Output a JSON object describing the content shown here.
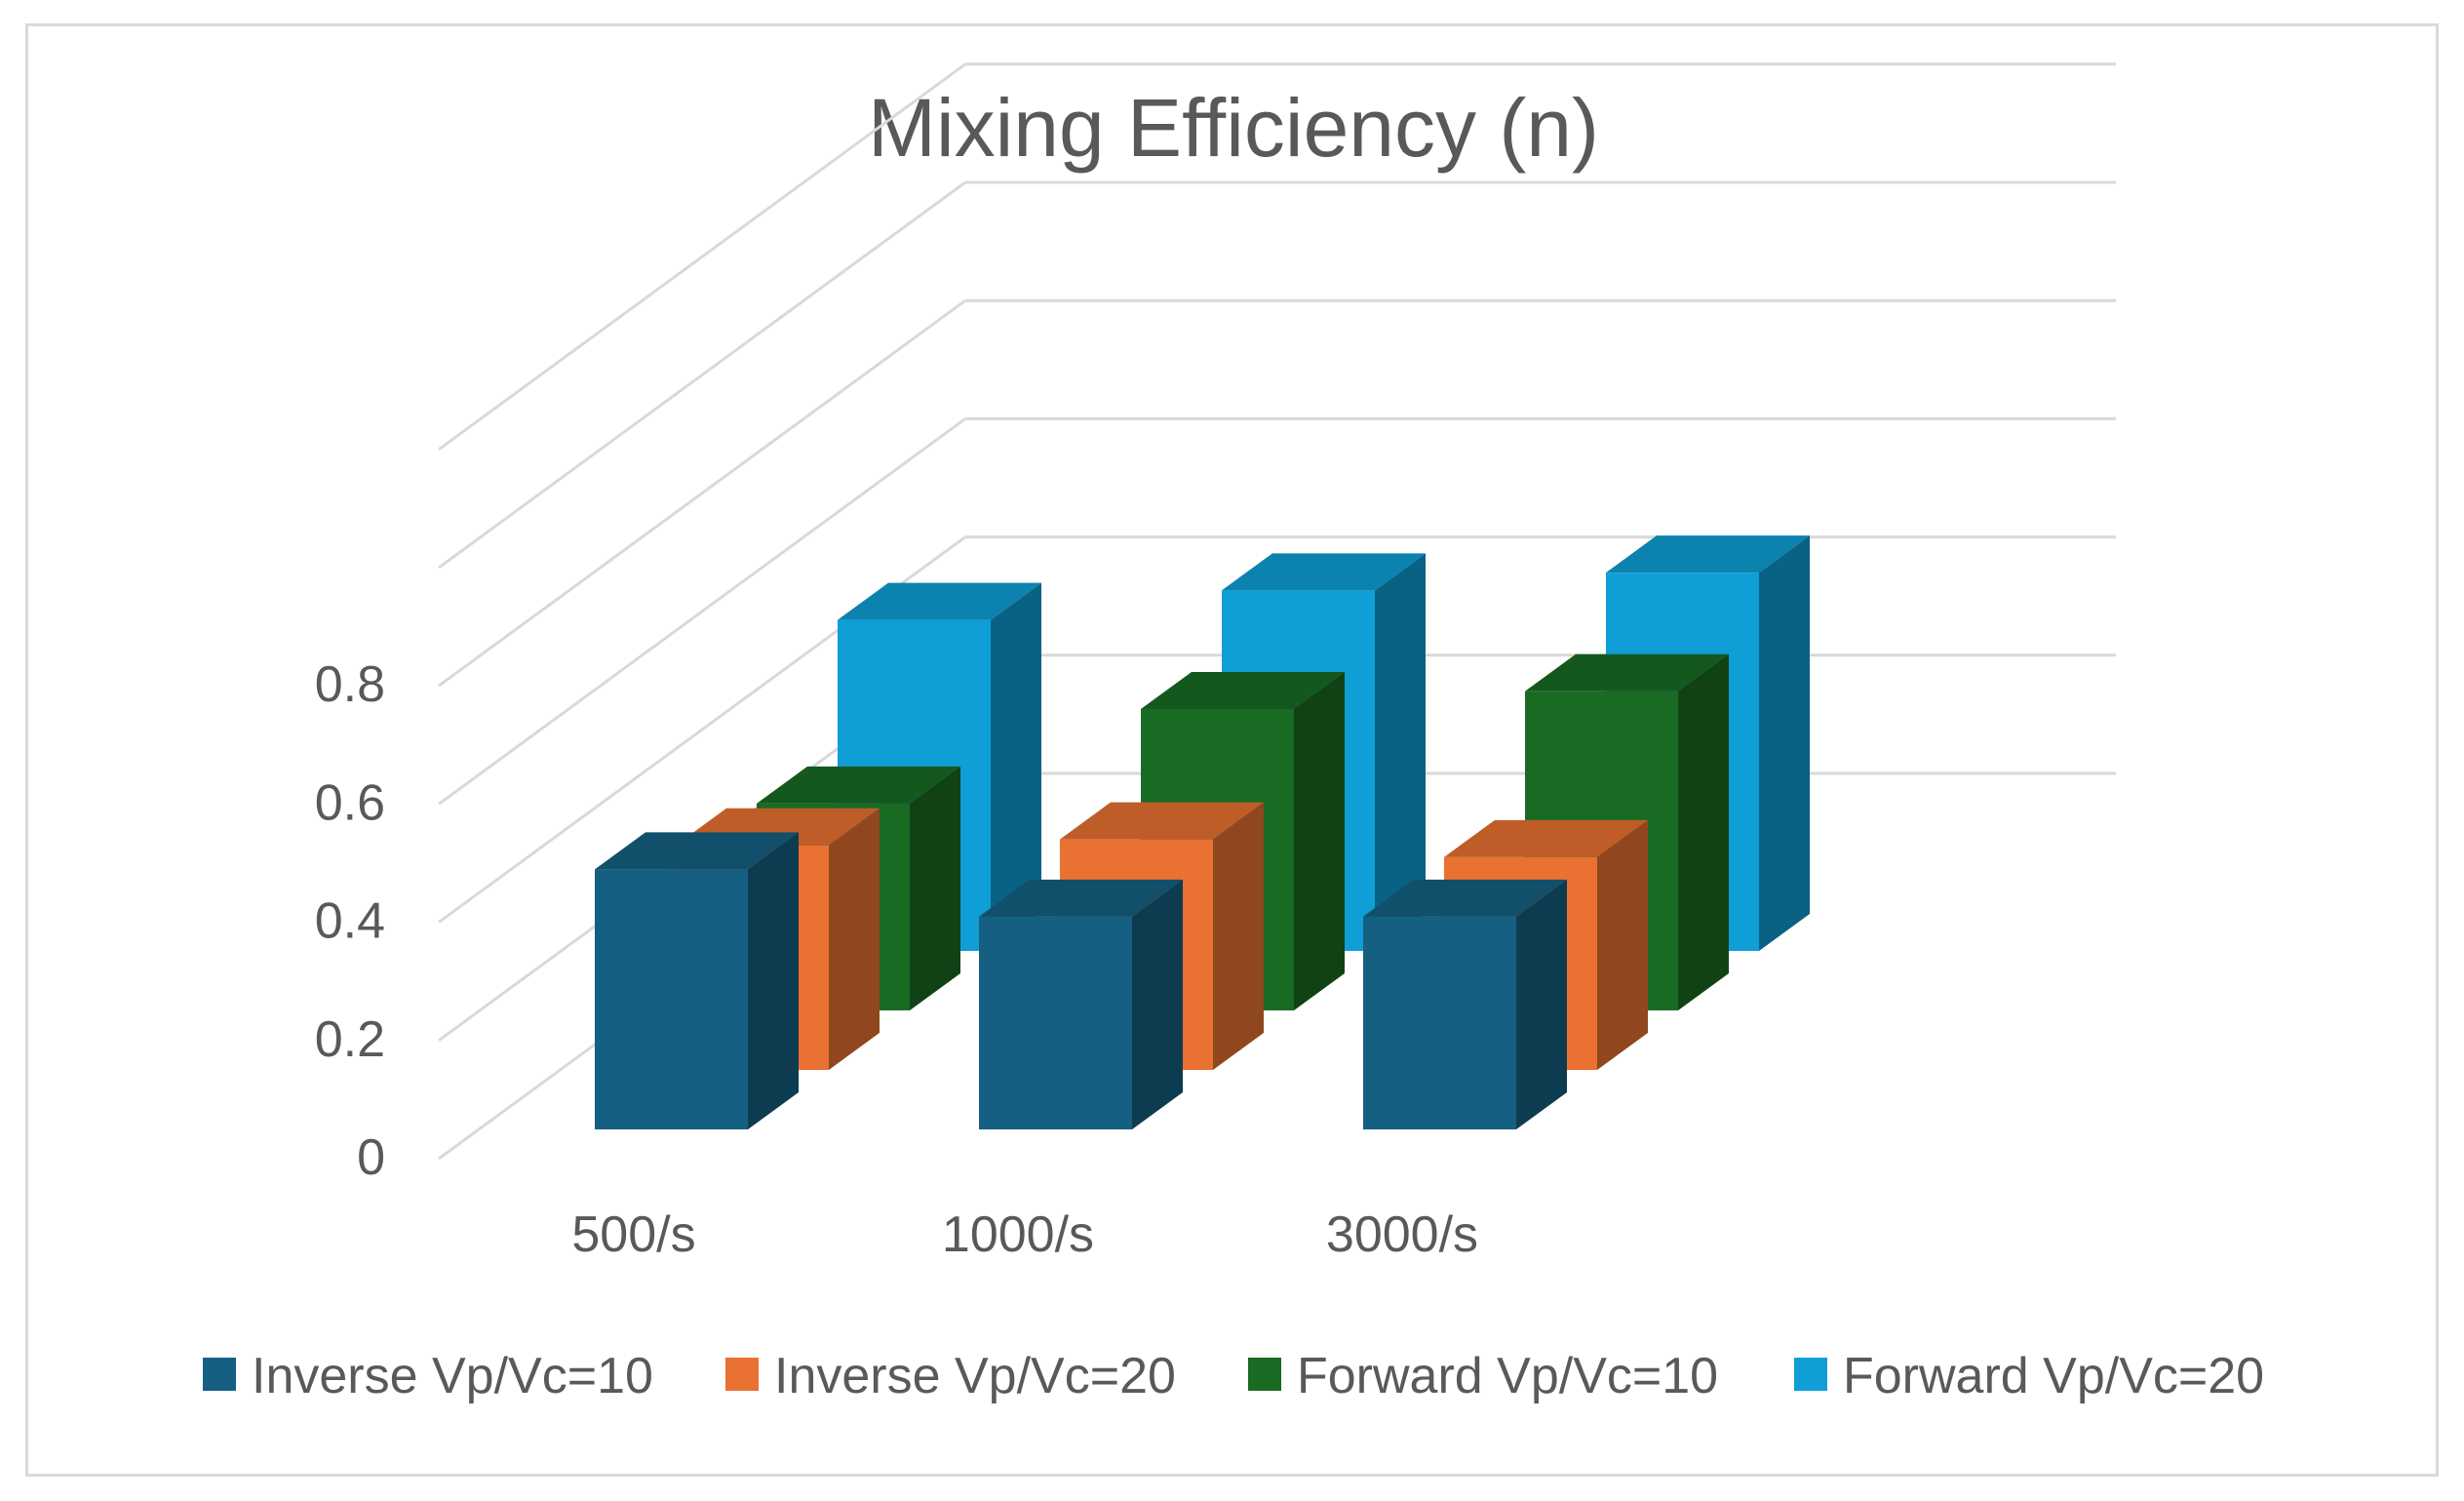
{
  "chart_data": {
    "type": "bar",
    "style": "3d-column",
    "title": "Mixing Efficiency (n)",
    "xlabel": "",
    "ylabel": "",
    "categories": [
      "500/s",
      "1000/s",
      "3000/s"
    ],
    "series": [
      {
        "name": "Inverse Vp/Vc=10",
        "color": "#156082",
        "values": [
          0.44,
          0.36,
          0.36
        ]
      },
      {
        "name": "Inverse Vp/Vc=20",
        "color": "#e97132",
        "values": [
          0.38,
          0.39,
          0.36
        ]
      },
      {
        "name": "Forward Vp/Vc=10",
        "color": "#196b24",
        "values": [
          0.35,
          0.51,
          0.54
        ]
      },
      {
        "name": "Forward Vp/Vc=20",
        "color": "#0f9ed5",
        "values": [
          0.56,
          0.61,
          0.64
        ]
      }
    ],
    "yticks": [
      "0",
      "0.2",
      "0.4",
      "0.6",
      "0.8"
    ],
    "ylim": [
      0,
      1.2
    ],
    "grid": true,
    "legend_position": "bottom"
  }
}
